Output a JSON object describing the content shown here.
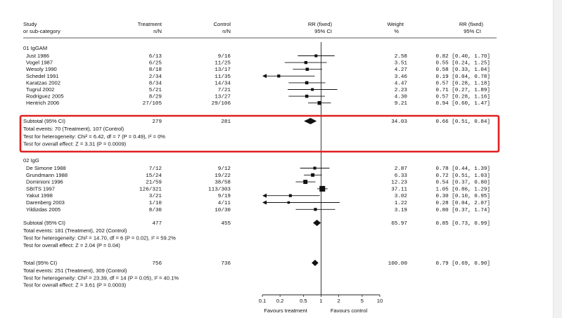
{
  "header": {
    "study": [
      "Study",
      "or sub-category"
    ],
    "treatment": [
      "Treatment",
      "n/N"
    ],
    "control": [
      "Control",
      "n/N"
    ],
    "rr": [
      "RR (fixed)",
      "95% CI"
    ],
    "weight": [
      "Weight",
      "%"
    ],
    "rr2": [
      "RR (fixed)",
      "95% CI"
    ]
  },
  "highlight_color": "#e02020",
  "axis": {
    "ticks": [
      "0.1",
      "0.2",
      "0.5",
      "1",
      "2",
      "5",
      "10"
    ],
    "favours_left": "Favours treatment",
    "favours_right": "Favours control"
  },
  "chart_data": {
    "type": "forest",
    "scale": "log",
    "xlim": [
      0.1,
      10
    ],
    "groups": [
      {
        "label": "01 IgGAM",
        "studies": [
          {
            "name": "Just 1986",
            "treatment": "6/13",
            "control": "9/16",
            "rr": 0.82,
            "lo": 0.4,
            "hi": 1.7,
            "weight": "2.58",
            "ci_text": "0.82 [0.40, 1.70]"
          },
          {
            "name": "Vogel  1987",
            "treatment": "6/25",
            "control": "11/25",
            "rr": 0.55,
            "lo": 0.24,
            "hi": 1.25,
            "weight": "3.51",
            "ci_text": "0.55 [0.24, 1.25]"
          },
          {
            "name": "Wesoly 1990",
            "treatment": "8/18",
            "control": "13/17",
            "rr": 0.58,
            "lo": 0.33,
            "hi": 1.04,
            "weight": "4.27",
            "ci_text": "0.58 [0.33, 1.04]"
          },
          {
            "name": "Schedel 1991",
            "treatment": "2/34",
            "control": "11/35",
            "rr": 0.19,
            "lo": 0.04,
            "hi": 0.78,
            "weight": "3.46",
            "ci_text": "0.19 [0.04, 0.78]"
          },
          {
            "name": "Karatzas 2002",
            "treatment": "8/34",
            "control": "14/34",
            "rr": 0.57,
            "lo": 0.28,
            "hi": 1.18,
            "weight": "4.47",
            "ci_text": "0.57 [0.28, 1.18]"
          },
          {
            "name": "Tugrul 2002",
            "treatment": "5/21",
            "control": "7/21",
            "rr": 0.71,
            "lo": 0.27,
            "hi": 1.89,
            "weight": "2.23",
            "ci_text": "0.71 [0.27, 1.89]"
          },
          {
            "name": "Rodriguez 2005",
            "treatment": "8/29",
            "control": "13/27",
            "rr": 0.57,
            "lo": 0.28,
            "hi": 1.16,
            "weight": "4.30",
            "ci_text": "0.57 [0.28, 1.16]"
          },
          {
            "name": "Hentrich 2006",
            "treatment": "27/105",
            "control": "29/106",
            "rr": 0.94,
            "lo": 0.6,
            "hi": 1.47,
            "weight": "9.21",
            "ci_text": "0.94 [0.60, 1.47]"
          }
        ],
        "subtotal": {
          "label": "Subtotal (95% CI)",
          "treatment": "279",
          "control": "281",
          "rr": 0.66,
          "lo": 0.51,
          "hi": 0.84,
          "weight": "34.03",
          "ci_text": "0.66 [0.51, 0.84]"
        },
        "notes": [
          "Total events: 70 (Treatment), 107 (Control)",
          "Test for heterogeneity: Chi² = 6.42, df = 7 (P = 0.49), I² = 0%",
          "Test for overall effect: Z = 3.31 (P = 0.0009)"
        ]
      },
      {
        "label": "02 IgG",
        "studies": [
          {
            "name": "De Simone 1988",
            "treatment": "7/12",
            "control": "9/12",
            "rr": 0.78,
            "lo": 0.44,
            "hi": 1.39,
            "weight": "2.87",
            "ci_text": "0.78 [0.44, 1.39]"
          },
          {
            "name": "Grundmann 1988",
            "treatment": "15/24",
            "control": "19/22",
            "rr": 0.72,
            "lo": 0.51,
            "hi": 1.03,
            "weight": "6.33",
            "ci_text": "0.72 [0.51, 1.03]"
          },
          {
            "name": "Dominioni 1996",
            "treatment": "21/59",
            "control": "38/58",
            "rr": 0.54,
            "lo": 0.37,
            "hi": 0.8,
            "weight": "12.23",
            "ci_text": "0.54 [0.37, 0.80]"
          },
          {
            "name": "SBITS 1997",
            "treatment": "126/321",
            "control": "113/303",
            "rr": 1.05,
            "lo": 0.86,
            "hi": 1.29,
            "weight": "37.11",
            "ci_text": "1.05 [0.86, 1.29]"
          },
          {
            "name": "Yakut 1998",
            "treatment": "3/21",
            "control": "9/19",
            "rr": 0.3,
            "lo": 0.1,
            "hi": 0.95,
            "weight": "3.02",
            "ci_text": "0.30 [0.10, 0.95]"
          },
          {
            "name": "Darenberg 2003",
            "treatment": "1/10",
            "control": "4/11",
            "rr": 0.28,
            "lo": 0.04,
            "hi": 2.07,
            "weight": "1.22",
            "ci_text": "0.28 [0.04, 2.07]"
          },
          {
            "name": "Yildizdas 2005",
            "treatment": "8/30",
            "control": "10/30",
            "rr": 0.8,
            "lo": 0.37,
            "hi": 1.74,
            "weight": "3.19",
            "ci_text": "0.80 [0.37, 1.74]"
          }
        ],
        "subtotal": {
          "label": "Subtotal (95% CI)",
          "treatment": "477",
          "control": "455",
          "rr": 0.85,
          "lo": 0.73,
          "hi": 0.99,
          "weight": "65.97",
          "ci_text": "0.85 [0.73, 0.99]"
        },
        "notes": [
          "Total events: 181 (Treatment), 202 (Control)",
          "Test for heterogeneity: Chi² = 14.70, df = 6 (P = 0.02), I² = 59.2%",
          "Test for overall effect: Z = 2.04 (P = 0.04)"
        ]
      }
    ],
    "total": {
      "label": "Total (95% CI)",
      "treatment": "756",
      "control": "736",
      "rr": 0.79,
      "lo": 0.69,
      "hi": 0.9,
      "weight": "100.00",
      "ci_text": "0.79 [0.69, 0.90]",
      "notes": [
        "Total events: 251 (Treatment), 309 (Control)",
        "Test for heterogeneity: Chi² = 23.39, df = 14 (P = 0.05), I² = 40.1%",
        "Test for overall effect: Z = 3.61 (P = 0.0003)"
      ]
    }
  }
}
